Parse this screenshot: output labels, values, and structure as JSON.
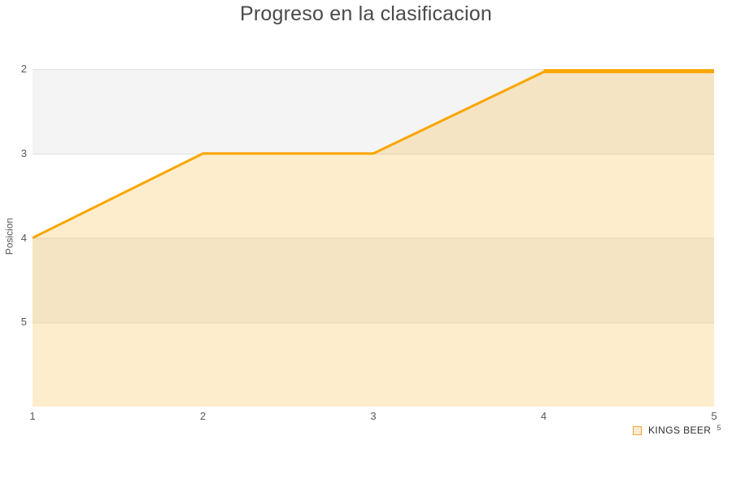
{
  "chart_data": {
    "type": "area",
    "title": "Progreso en la clasificacion",
    "xlabel": "",
    "ylabel": "Posicion",
    "categories": [
      "1",
      "2",
      "3",
      "4",
      "5"
    ],
    "series": [
      {
        "name": "KINGS BEER",
        "values": [
          4,
          3,
          3,
          2,
          2
        ]
      }
    ],
    "yticks": [
      2,
      3,
      4,
      5
    ],
    "ylim": [
      2,
      6
    ],
    "y_axis_reversed": true,
    "grid": "horizontal-bands",
    "legend_position": "bottom-right",
    "bands": [
      {
        "from": 2,
        "to": 3,
        "color": "#f4f4f4"
      },
      {
        "from": 3,
        "to": 4,
        "color": "#ffffff"
      },
      {
        "from": 4,
        "to": 5,
        "color": "#f4f4f4"
      },
      {
        "from": 5,
        "to": 6,
        "color": "#ffffff"
      }
    ],
    "extra_top_segment": {
      "from_index": 3,
      "to_index": 4,
      "position": 2
    },
    "colors": {
      "line": "#f9a602",
      "fill": "rgba(250,165,0,0.2)",
      "gridline": "#e0e0e0",
      "title": "#4a4a4a",
      "tick": "#58595b"
    }
  },
  "legend": {
    "items": [
      {
        "label": "KINGS BEER",
        "swatch_fill": "#faebd2",
        "swatch_border": "#efa73c"
      }
    ],
    "superscript": "5"
  }
}
